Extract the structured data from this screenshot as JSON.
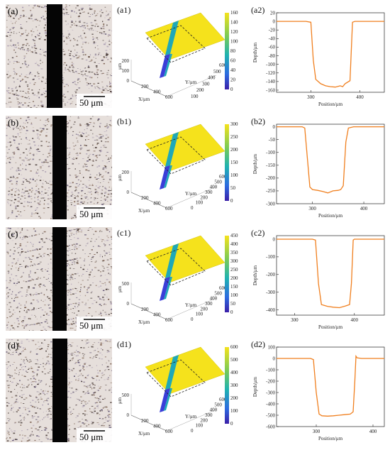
{
  "colors": {
    "curve": "#f07f1e",
    "surface": "#f5e21c",
    "groove": "#1fa8b8",
    "groove_deep": "#3b3ed8",
    "dark_slot": "#050505"
  },
  "rows": [
    {
      "micro_label": "(a)",
      "scale_text": "50 μm",
      "surf_label": "(a1)",
      "surf_z_ticks": [
        "0",
        "100",
        "200"
      ],
      "surf_x_ticks": [
        "200",
        "400",
        "600"
      ],
      "surf_y_ticks": [
        "100",
        "200",
        "300",
        "400",
        "500",
        "600"
      ],
      "surf_z_unit": "μm",
      "surf_x_label": "X/μm",
      "surf_y_label": "Y/μm",
      "colorbar_ticks": [
        "0",
        "20",
        "40",
        "60",
        "80",
        "100",
        "120",
        "140",
        "160"
      ],
      "profile_label": "(a2)"
    },
    {
      "micro_label": "(b)",
      "scale_text": "50 μm",
      "surf_label": "(b1)",
      "surf_z_ticks": [
        "0",
        "200"
      ],
      "surf_x_ticks": [
        "200",
        "400",
        "600"
      ],
      "surf_y_ticks": [
        "0",
        "100",
        "200",
        "300",
        "400",
        "500",
        "600"
      ],
      "surf_z_unit": "μm",
      "surf_x_label": "X/μm",
      "surf_y_label": "Y/μm",
      "colorbar_ticks": [
        "0",
        "50",
        "100",
        "150",
        "200",
        "250",
        "300"
      ],
      "profile_label": "(b2)"
    },
    {
      "micro_label": "(c)",
      "scale_text": "50 μm",
      "surf_label": "(c1)",
      "surf_z_ticks": [
        "0",
        "500"
      ],
      "surf_x_ticks": [
        "200",
        "400",
        "600"
      ],
      "surf_y_ticks": [
        "0",
        "100",
        "200",
        "300",
        "400",
        "500",
        "600"
      ],
      "surf_z_unit": "μm",
      "surf_x_label": "X/μm",
      "surf_y_label": "Y/μm",
      "colorbar_ticks": [
        "0",
        "50",
        "100",
        "150",
        "200",
        "250",
        "300",
        "350",
        "400",
        "450"
      ],
      "profile_label": "(c2)"
    },
    {
      "micro_label": "(d)",
      "scale_text": "50 μm",
      "surf_label": "(d1)",
      "surf_z_ticks": [
        "0",
        "500"
      ],
      "surf_x_ticks": [
        "200",
        "400",
        "600"
      ],
      "surf_y_ticks": [
        "0",
        "100",
        "200",
        "300",
        "400",
        "500",
        "600"
      ],
      "surf_z_unit": "μm",
      "surf_x_label": "X/μm",
      "surf_y_label": "Y/μm",
      "colorbar_ticks": [
        "0",
        "100",
        "200",
        "300",
        "400",
        "500",
        "600"
      ],
      "profile_label": "(d2)"
    }
  ],
  "chart_data": [
    {
      "type": "line",
      "panel": "(a2)",
      "xlabel": "Position/μm",
      "ylabel": "Depth/μm",
      "xlim": [
        230,
        450
      ],
      "ylim": [
        -165,
        20
      ],
      "xticks": [
        300,
        400
      ],
      "yticks": [
        20,
        0,
        -20,
        -40,
        -60,
        -80,
        -100,
        -120,
        -140,
        -160
      ],
      "x": [
        230,
        290,
        300,
        305,
        310,
        320,
        330,
        340,
        350,
        360,
        365,
        370,
        380,
        385,
        390,
        400,
        450
      ],
      "y": [
        0,
        0,
        -2,
        -90,
        -135,
        -145,
        -150,
        -152,
        -153,
        -150,
        -152,
        -145,
        -138,
        -2,
        0,
        0,
        0
      ]
    },
    {
      "type": "line",
      "panel": "(b2)",
      "xlabel": "Position/μm",
      "ylabel": "Depth/μm",
      "xlim": [
        230,
        440
      ],
      "ylim": [
        -300,
        10
      ],
      "xticks": [
        300,
        400
      ],
      "yticks": [
        0,
        -50,
        -100,
        -150,
        -200,
        -250,
        -300
      ],
      "x": [
        230,
        280,
        285,
        290,
        295,
        300,
        310,
        320,
        330,
        340,
        350,
        355,
        360,
        365,
        370,
        380,
        440
      ],
      "y": [
        0,
        0,
        -5,
        -120,
        -235,
        -245,
        -248,
        -252,
        -258,
        -250,
        -248,
        -245,
        -230,
        -60,
        -5,
        0,
        0
      ]
    },
    {
      "type": "line",
      "panel": "(c2)",
      "xlabel": "Position/μm",
      "ylabel": "Depth/μm",
      "xlim": [
        270,
        450
      ],
      "ylim": [
        -430,
        20
      ],
      "xticks": [
        300,
        400
      ],
      "yticks": [
        0,
        -100,
        -200,
        -300,
        -400
      ],
      "x": [
        270,
        330,
        335,
        340,
        345,
        355,
        365,
        375,
        385,
        392,
        395,
        398,
        400,
        450
      ],
      "y": [
        0,
        0,
        -5,
        -250,
        -370,
        -380,
        -385,
        -388,
        -378,
        -370,
        -250,
        -5,
        0,
        0
      ]
    },
    {
      "type": "line",
      "panel": "(d2)",
      "xlabel": "Position/μm",
      "ylabel": "Depth/μm",
      "xlim": [
        230,
        420
      ],
      "ylim": [
        -600,
        100
      ],
      "xticks": [
        300,
        400
      ],
      "yticks": [
        100,
        0,
        -100,
        -200,
        -300,
        -400,
        -500,
        -600
      ],
      "x": [
        230,
        290,
        295,
        300,
        305,
        310,
        320,
        330,
        340,
        350,
        360,
        365,
        368,
        370,
        372,
        380,
        420
      ],
      "y": [
        0,
        0,
        -10,
        -300,
        -490,
        -505,
        -508,
        -505,
        -500,
        -495,
        -490,
        -470,
        -200,
        20,
        5,
        0,
        0
      ]
    }
  ]
}
